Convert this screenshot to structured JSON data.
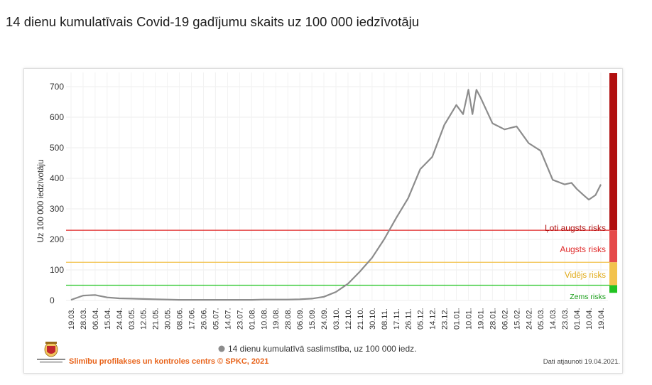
{
  "page": {
    "title": "14 dienu kumulatīvais Covid-19 gadījumu skaits uz 100 000 iedzīvotāju"
  },
  "footer": {
    "credit": "Slimību profilakses un kontroles centrs © SPKC, 2021",
    "updated": "Dati atjaunoti 19.04.2021.",
    "logo_icon": "spkc-coat-of-arms-icon"
  },
  "colors": {
    "line": "#8c8c8c",
    "very_high": "#b10f0f",
    "high": "#e54a4a",
    "medium": "#f2c24d",
    "low": "#22c322"
  },
  "chart_data": {
    "type": "line",
    "title": "14 dienu kumulatīvais Covid-19 gadījumu skaits uz 100 000 iedzīvotāju",
    "ylabel": "Uz 100 000 iedzīvotāju",
    "xlabel": "",
    "ylim": [
      0,
      750
    ],
    "yticks": [
      0,
      100,
      200,
      300,
      400,
      500,
      600,
      700
    ],
    "grid": true,
    "legend_position": "bottom",
    "x_tick_labels": [
      "19.03.",
      "28.03.",
      "06.04.",
      "15.04.",
      "24.04.",
      "03.05.",
      "12.05.",
      "21.05.",
      "30.05.",
      "08.06.",
      "17.06.",
      "26.06.",
      "05.07.",
      "14.07.",
      "23.07.",
      "01.08.",
      "10.08.",
      "19.08.",
      "28.08.",
      "06.09.",
      "15.09.",
      "24.09.",
      "03.10.",
      "12.10.",
      "21.10.",
      "30.10.",
      "08.11.",
      "17.11.",
      "26.11.",
      "05.12.",
      "14.12.",
      "23.12.",
      "01.01.",
      "10.01.",
      "19.01.",
      "28.01.",
      "06.02.",
      "15.02.",
      "24.02.",
      "05.03.",
      "14.03.",
      "23.03.",
      "01.04.",
      "10.04.",
      "19.04."
    ],
    "series": [
      {
        "name": "14 dienu kumulatīvā saslimstība, uz 100 000 iedz.",
        "x": [
          "19.03.",
          "28.03.",
          "06.04.",
          "15.04.",
          "24.04.",
          "03.05.",
          "12.05.",
          "21.05.",
          "30.05.",
          "08.06.",
          "17.06.",
          "26.06.",
          "05.07.",
          "14.07.",
          "23.07.",
          "01.08.",
          "10.08.",
          "19.08.",
          "28.08.",
          "06.09.",
          "15.09.",
          "24.09.",
          "03.10.",
          "12.10.",
          "21.10.",
          "30.10.",
          "08.11.",
          "17.11.",
          "26.11.",
          "05.12.",
          "14.12.",
          "23.12.",
          "01.01.",
          "06.01.",
          "10.01.",
          "13.01.",
          "16.01.",
          "19.01.",
          "28.01.",
          "06.02.",
          "15.02.",
          "24.02.",
          "05.03.",
          "14.03.",
          "23.03.",
          "28.03.",
          "01.04.",
          "06.04.",
          "10.04.",
          "15.04.",
          "19.04."
        ],
        "values": [
          2,
          16,
          18,
          10,
          7,
          6,
          5,
          4,
          3,
          2,
          2,
          2,
          2,
          2,
          2,
          2,
          3,
          3,
          3,
          4,
          6,
          12,
          28,
          55,
          95,
          140,
          200,
          270,
          335,
          430,
          470,
          575,
          640,
          610,
          690,
          610,
          690,
          665,
          580,
          560,
          570,
          515,
          490,
          395,
          380,
          385,
          365,
          345,
          330,
          345,
          380
        ]
      }
    ],
    "thresholds": [
      {
        "label": "Ļoti augsts risks",
        "value": 230,
        "band_from": 230,
        "band_to": 750,
        "color": "#b10f0f",
        "line_color": "#e02a2a"
      },
      {
        "label": "Augsts risks",
        "value": 125,
        "band_from": 125,
        "band_to": 230,
        "color": "#e54a4a",
        "line_color": null
      },
      {
        "label": "Vidējs risks",
        "value": 125,
        "band_from": 50,
        "band_to": 125,
        "color": "#f2c24d",
        "line_color": "#f2c24d"
      },
      {
        "label": "Zems risks",
        "value": 50,
        "band_from": 25,
        "band_to": 50,
        "color": "#22c322",
        "line_color": "#22c322"
      }
    ]
  }
}
